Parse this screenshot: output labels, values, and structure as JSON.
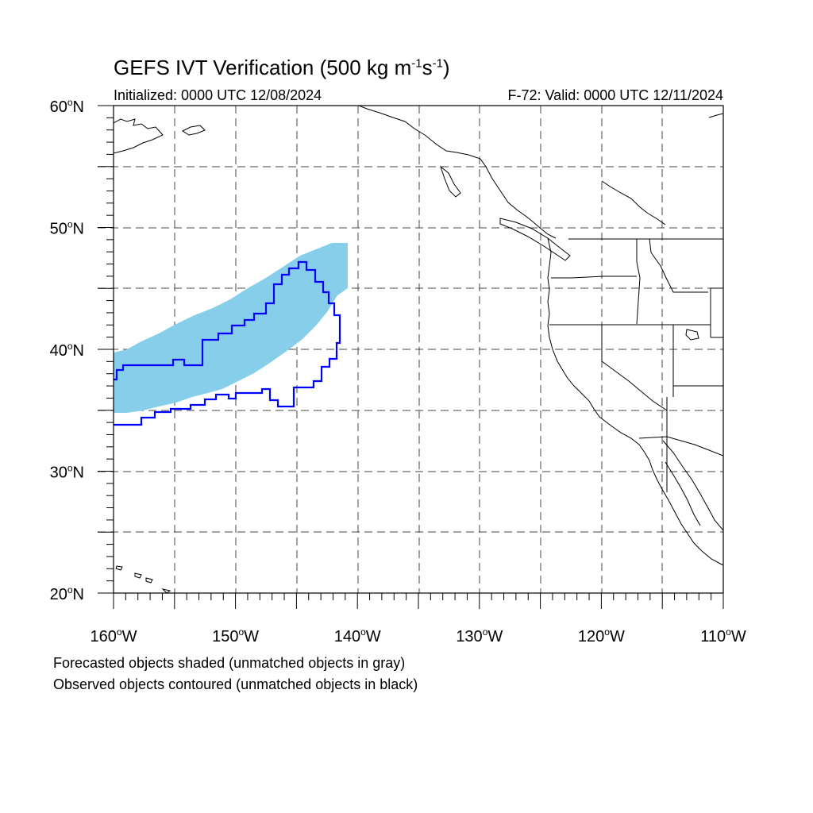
{
  "header": {
    "title_main": "GEFS IVT Verification (500 kg m",
    "title_exp1": "-1",
    "title_mid": "s",
    "title_exp2": "-1",
    "title_end": ")",
    "initialized": "Initialized: 0000 UTC 12/08/2024",
    "valid": "F-72: Valid: 0000 UTC 12/11/2024"
  },
  "map": {
    "extent": {
      "lon_min": -160,
      "lon_max": -110,
      "lat_min": 20,
      "lat_max": 60
    },
    "lat_labels": [
      {
        "lat": 60,
        "num": "60",
        "hem": "N"
      },
      {
        "lat": 50,
        "num": "50",
        "hem": "N"
      },
      {
        "lat": 40,
        "num": "40",
        "hem": "N"
      },
      {
        "lat": 30,
        "num": "30",
        "hem": "N"
      },
      {
        "lat": 20,
        "num": "20",
        "hem": "N"
      }
    ],
    "lon_labels": [
      {
        "lon": -160,
        "num": "160",
        "hem": "W"
      },
      {
        "lon": -150,
        "num": "150",
        "hem": "W"
      },
      {
        "lon": -140,
        "num": "140",
        "hem": "W"
      },
      {
        "lon": -130,
        "num": "130",
        "hem": "W"
      },
      {
        "lon": -120,
        "num": "120",
        "hem": "W"
      },
      {
        "lon": -110,
        "num": "110",
        "hem": "W"
      }
    ],
    "colors": {
      "forecast_fill": "#87ceeb",
      "observed_contour": "#0000ff",
      "coastline": "#000000",
      "grid": "#444444"
    }
  },
  "notes": {
    "line1": "Forecasted objects shaded (unmatched objects in gray)",
    "line2": "Observed objects contoured (unmatched objects in black)"
  }
}
